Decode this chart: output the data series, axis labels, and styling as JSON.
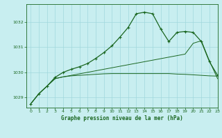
{
  "title": "Graphe pression niveau de la mer (hPa)",
  "bg_color": "#c8eef0",
  "grid_color": "#a0d8dc",
  "line_color": "#1a6620",
  "xlim": [
    -0.5,
    23
  ],
  "ylim": [
    1028.6,
    1032.7
  ],
  "yticks": [
    1029,
    1030,
    1031,
    1032
  ],
  "xticks": [
    0,
    1,
    2,
    3,
    4,
    5,
    6,
    7,
    8,
    9,
    10,
    11,
    12,
    13,
    14,
    15,
    16,
    17,
    18,
    19,
    20,
    21,
    22,
    23
  ],
  "series1_x": [
    0,
    1,
    2,
    3,
    4,
    5,
    6,
    7,
    8,
    9,
    10,
    11,
    12,
    13,
    14,
    15,
    16,
    17,
    18,
    19,
    20,
    21,
    22,
    23
  ],
  "series1_y": [
    1028.75,
    1029.15,
    1029.45,
    1029.75,
    1029.82,
    1029.86,
    1029.88,
    1029.9,
    1029.92,
    1029.94,
    1029.95,
    1029.95,
    1029.95,
    1029.95,
    1029.95,
    1029.95,
    1029.95,
    1029.95,
    1029.93,
    1029.92,
    1029.9,
    1029.88,
    1029.86,
    1029.85
  ],
  "series2_x": [
    0,
    1,
    2,
    3,
    4,
    5,
    6,
    7,
    8,
    9,
    10,
    11,
    12,
    13,
    14,
    15,
    16,
    17,
    18,
    19,
    20,
    21,
    22,
    23
  ],
  "series2_y": [
    1028.75,
    1029.15,
    1029.45,
    1029.75,
    1029.82,
    1029.88,
    1029.94,
    1030.0,
    1030.06,
    1030.12,
    1030.18,
    1030.24,
    1030.3,
    1030.36,
    1030.42,
    1030.48,
    1030.54,
    1030.6,
    1030.66,
    1030.72,
    1031.15,
    1031.25,
    1030.45,
    1029.75
  ],
  "series3_x": [
    0,
    1,
    2,
    3,
    4,
    5,
    6,
    7,
    8,
    9,
    10,
    11,
    12,
    13,
    14,
    15,
    16,
    17,
    18,
    19,
    20,
    21,
    22,
    23
  ],
  "series3_y": [
    1028.75,
    1029.15,
    1029.45,
    1029.8,
    1030.0,
    1030.12,
    1030.22,
    1030.35,
    1030.55,
    1030.78,
    1031.05,
    1031.4,
    1031.78,
    1032.32,
    1032.38,
    1032.32,
    1031.72,
    1031.22,
    1031.58,
    1031.62,
    1031.58,
    1031.22,
    1030.42,
    1029.88
  ]
}
